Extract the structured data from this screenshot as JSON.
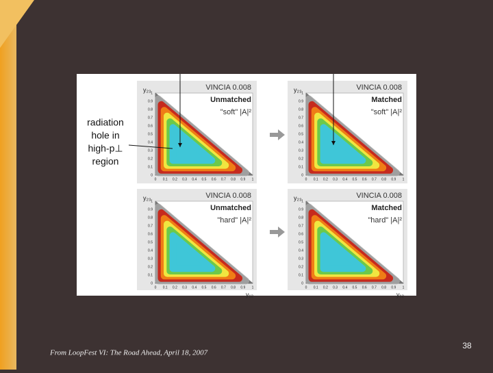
{
  "figure": {
    "annotation": [
      "radiation",
      "hole in",
      "high-p⊥",
      "region"
    ],
    "axis_ticks": [
      0,
      0.1,
      0.2,
      0.3,
      0.4,
      0.5,
      0.6,
      0.7,
      0.8,
      0.9,
      1
    ],
    "panels": [
      {
        "generator": "VINCIA 0.008",
        "matching": "Unmatched",
        "ansatz": "\"soft\" |A|²",
        "y_label": "y₂₃"
      },
      {
        "generator": "VINCIA 0.008",
        "matching": "Matched",
        "ansatz": "\"soft\" |A|²",
        "y_label": "y₂₃"
      },
      {
        "generator": "VINCIA 0.008",
        "matching": "Unmatched",
        "ansatz": "\"hard\" |A|²",
        "y_label": "y₂₃",
        "x_label": "y₁₂"
      },
      {
        "generator": "VINCIA 0.008",
        "matching": "Matched",
        "ansatz": "\"hard\" |A|²",
        "y_label": "y₂₃",
        "x_label": "y₁₂"
      }
    ]
  },
  "footer": {
    "source": "From  LoopFest  VI: The Road Ahead,  April 18, 2007",
    "page_number": "38"
  }
}
